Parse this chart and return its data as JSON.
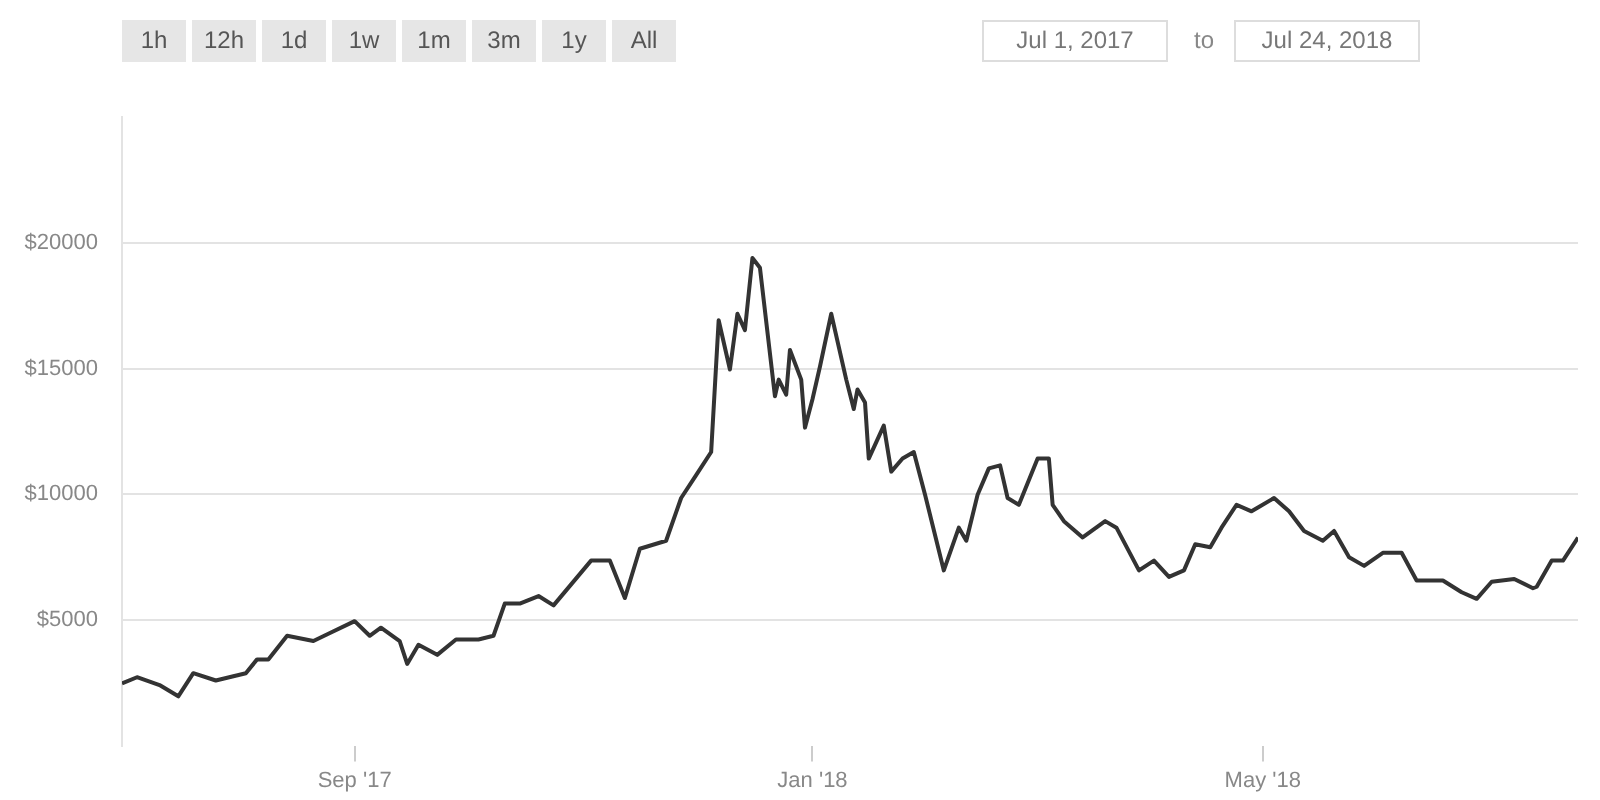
{
  "chart_data": {
    "type": "line",
    "annotations": [
      "1h",
      "12h",
      "1d",
      "1w",
      "1m",
      "3m",
      "1y",
      "All",
      "Jul 1, 2017",
      "to",
      "Jul 24, 2018"
    ],
    "x": [
      "2017-07-01",
      "2017-07-05",
      "2017-07-11",
      "2017-07-16",
      "2017-07-20",
      "2017-07-26",
      "2017-08-03",
      "2017-08-06",
      "2017-08-09",
      "2017-08-14",
      "2017-08-21",
      "2017-08-25",
      "2017-09-01",
      "2017-09-05",
      "2017-09-08",
      "2017-09-13",
      "2017-09-15",
      "2017-09-18",
      "2017-09-23",
      "2017-09-28",
      "2017-10-04",
      "2017-10-08",
      "2017-10-11",
      "2017-10-15",
      "2017-10-20",
      "2017-10-24",
      "2017-11-03",
      "2017-11-08",
      "2017-11-12",
      "2017-11-16",
      "2017-11-23",
      "2017-11-27",
      "2017-12-01",
      "2017-12-05",
      "2017-12-07",
      "2017-12-10",
      "2017-12-12",
      "2017-12-14",
      "2017-12-16",
      "2017-12-18",
      "2017-12-22",
      "2017-12-23",
      "2017-12-25",
      "2017-12-26",
      "2017-12-29",
      "2017-12-30",
      "2018-01-01",
      "2018-01-03",
      "2018-01-06",
      "2018-01-10",
      "2018-01-12",
      "2018-01-13",
      "2018-01-15",
      "2018-01-16",
      "2018-01-20",
      "2018-01-22",
      "2018-01-25",
      "2018-01-28",
      "2018-01-31",
      "2018-02-05",
      "2018-02-09",
      "2018-02-11",
      "2018-02-14",
      "2018-02-17",
      "2018-02-20",
      "2018-02-22",
      "2018-02-25",
      "2018-03-02",
      "2018-03-05",
      "2018-03-06",
      "2018-03-09",
      "2018-03-14",
      "2018-03-20",
      "2018-03-23",
      "2018-03-29",
      "2018-04-02",
      "2018-04-06",
      "2018-04-10",
      "2018-04-13",
      "2018-04-17",
      "2018-04-20",
      "2018-04-24",
      "2018-04-28",
      "2018-05-04",
      "2018-05-08",
      "2018-05-12",
      "2018-05-17",
      "2018-05-20",
      "2018-05-24",
      "2018-05-28",
      "2018-06-02",
      "2018-06-07",
      "2018-06-11",
      "2018-06-18",
      "2018-06-23",
      "2018-06-27",
      "2018-07-01",
      "2018-07-07",
      "2018-07-12",
      "2018-07-13",
      "2018-07-17",
      "2018-07-20",
      "2018-07-24"
    ],
    "series": [
      {
        "color": "#333333",
        "values": [
          2470,
          2720,
          2410,
          1960,
          2880,
          2590,
          2880,
          3430,
          3430,
          4370,
          4160,
          4450,
          4950,
          4370,
          4690,
          4160,
          3250,
          4010,
          3610,
          4220,
          4220,
          4370,
          5650,
          5650,
          5950,
          5580,
          7360,
          7360,
          5870,
          7830,
          8150,
          9850,
          10760,
          11680,
          16920,
          14960,
          17180,
          16530,
          19400,
          19010,
          13900,
          14560,
          13960,
          15740,
          14560,
          12650,
          13780,
          15080,
          17180,
          14560,
          13390,
          14170,
          13650,
          11420,
          12730,
          10900,
          11420,
          11680,
          9980,
          6970,
          8670,
          8150,
          9980,
          11030,
          11150,
          9850,
          9580,
          11420,
          11420,
          9580,
          8930,
          8280,
          8930,
          8670,
          6970,
          7360,
          6710,
          6970,
          8010,
          7890,
          8670,
          9580,
          9320,
          9850,
          9320,
          8540,
          8150,
          8540,
          7490,
          7150,
          7670,
          7670,
          6570,
          6570,
          6100,
          5840,
          6520,
          6630,
          6260,
          6320,
          7360,
          7360,
          8280
        ]
      }
    ],
    "xlim": [
      "2017-07-01",
      "2018-07-24"
    ],
    "xticks": [
      {
        "value": "2017-09-01",
        "label": "Sep '17"
      },
      {
        "value": "2018-01-01",
        "label": "Jan '18"
      },
      {
        "value": "2018-05-01",
        "label": "May '18"
      }
    ],
    "ylim": [
      0,
      25000
    ],
    "yticks": [
      {
        "value": 5000,
        "label": "$5000"
      },
      {
        "value": 10000,
        "label": "$10000"
      },
      {
        "value": 15000,
        "label": "$15000"
      },
      {
        "value": 20000,
        "label": "$20000"
      }
    ],
    "grid": "y",
    "legend": false,
    "marker": "none",
    "line_style": "solid"
  }
}
